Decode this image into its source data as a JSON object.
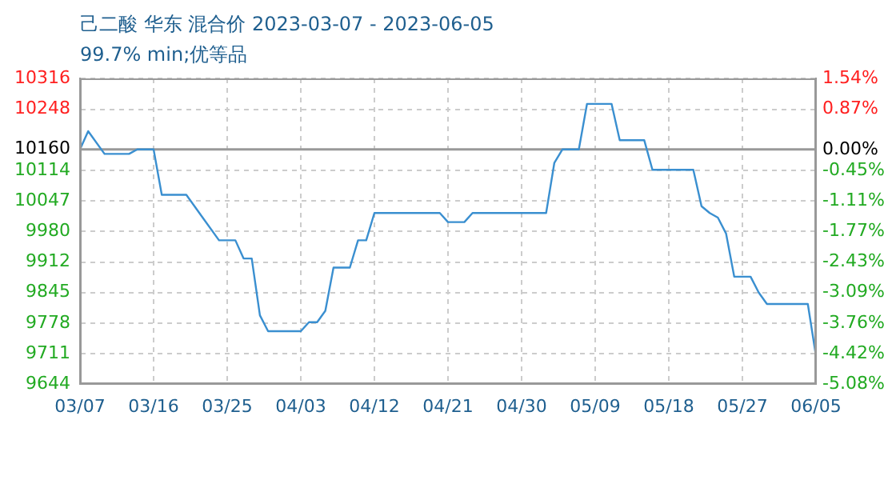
{
  "chart_data": {
    "type": "line",
    "title": "己二酸 华东 混合价 2023-03-07 - 2023-06-05",
    "subtitle": "99.7% min;优等品",
    "x": [
      "2023-03-07",
      "2023-03-08",
      "2023-03-10",
      "2023-03-13",
      "2023-03-14",
      "2023-03-16",
      "2023-03-17",
      "2023-03-20",
      "2023-03-21",
      "2023-03-22",
      "2023-03-24",
      "2023-03-26",
      "2023-03-27",
      "2023-03-28",
      "2023-03-29",
      "2023-03-30",
      "2023-04-03",
      "2023-04-04",
      "2023-04-05",
      "2023-04-06",
      "2023-04-07",
      "2023-04-09",
      "2023-04-10",
      "2023-04-11",
      "2023-04-12",
      "2023-04-20",
      "2023-04-21",
      "2023-04-23",
      "2023-04-24",
      "2023-05-03",
      "2023-05-04",
      "2023-05-05",
      "2023-05-07",
      "2023-05-08",
      "2023-05-11",
      "2023-05-12",
      "2023-05-15",
      "2023-05-16",
      "2023-05-21",
      "2023-05-22",
      "2023-05-23",
      "2023-05-24",
      "2023-05-25",
      "2023-05-26",
      "2023-05-28",
      "2023-05-29",
      "2023-05-30",
      "2023-06-04",
      "2023-06-05"
    ],
    "series": [
      {
        "color": "#3a8fd0",
        "values": [
          10160,
          10200,
          10150,
          10150,
          10160,
          10160,
          10060,
          10060,
          10035,
          10010,
          9960,
          9960,
          9920,
          9920,
          9795,
          9760,
          9760,
          9780,
          9780,
          9805,
          9900,
          9900,
          9960,
          9960,
          10020,
          10020,
          10000,
          10000,
          10020,
          10020,
          10130,
          10160,
          10160,
          10260,
          10260,
          10180,
          10180,
          10115,
          10115,
          10035,
          10020,
          10010,
          9975,
          9880,
          9880,
          9845,
          9820,
          9820,
          9705
        ]
      }
    ],
    "xlim": [
      "2023-03-07",
      "2023-06-05"
    ],
    "xticks": [
      {
        "value": "2023-03-07",
        "label": "03/07"
      },
      {
        "value": "2023-03-16",
        "label": "03/16"
      },
      {
        "value": "2023-03-25",
        "label": "03/25"
      },
      {
        "value": "2023-04-03",
        "label": "04/03"
      },
      {
        "value": "2023-04-12",
        "label": "04/12"
      },
      {
        "value": "2023-04-21",
        "label": "04/21"
      },
      {
        "value": "2023-04-30",
        "label": "04/30"
      },
      {
        "value": "2023-05-09",
        "label": "05/09"
      },
      {
        "value": "2023-05-18",
        "label": "05/18"
      },
      {
        "value": "2023-05-27",
        "label": "05/27"
      },
      {
        "value": "2023-06-05",
        "label": "06/05"
      }
    ],
    "ylim": [
      9644,
      10316
    ],
    "yticks": [
      9644,
      9711,
      9778,
      9845,
      9912,
      9980,
      10047,
      10114,
      10160,
      10248,
      10316
    ],
    "y2lim": [
      -5.08,
      1.54
    ],
    "y2ticks": [
      {
        "value": -5.08,
        "label": "-5.08%"
      },
      {
        "value": -4.42,
        "label": "-4.42%"
      },
      {
        "value": -3.76,
        "label": "-3.76%"
      },
      {
        "value": -3.09,
        "label": "-3.09%"
      },
      {
        "value": -2.43,
        "label": "-2.43%"
      },
      {
        "value": -1.77,
        "label": "-1.77%"
      },
      {
        "value": -1.11,
        "label": "-1.11%"
      },
      {
        "value": -0.45,
        "label": "-0.45%"
      },
      {
        "value": 0,
        "label": "0.00%"
      },
      {
        "value": 0.87,
        "label": "0.87%"
      },
      {
        "value": 1.54,
        "label": "1.54%"
      }
    ],
    "ref_lines": [
      {
        "axis": "y",
        "value": 10160,
        "color": "#999999"
      }
    ],
    "grid": true,
    "legend": false,
    "marker": "none",
    "line_style": "solid"
  }
}
